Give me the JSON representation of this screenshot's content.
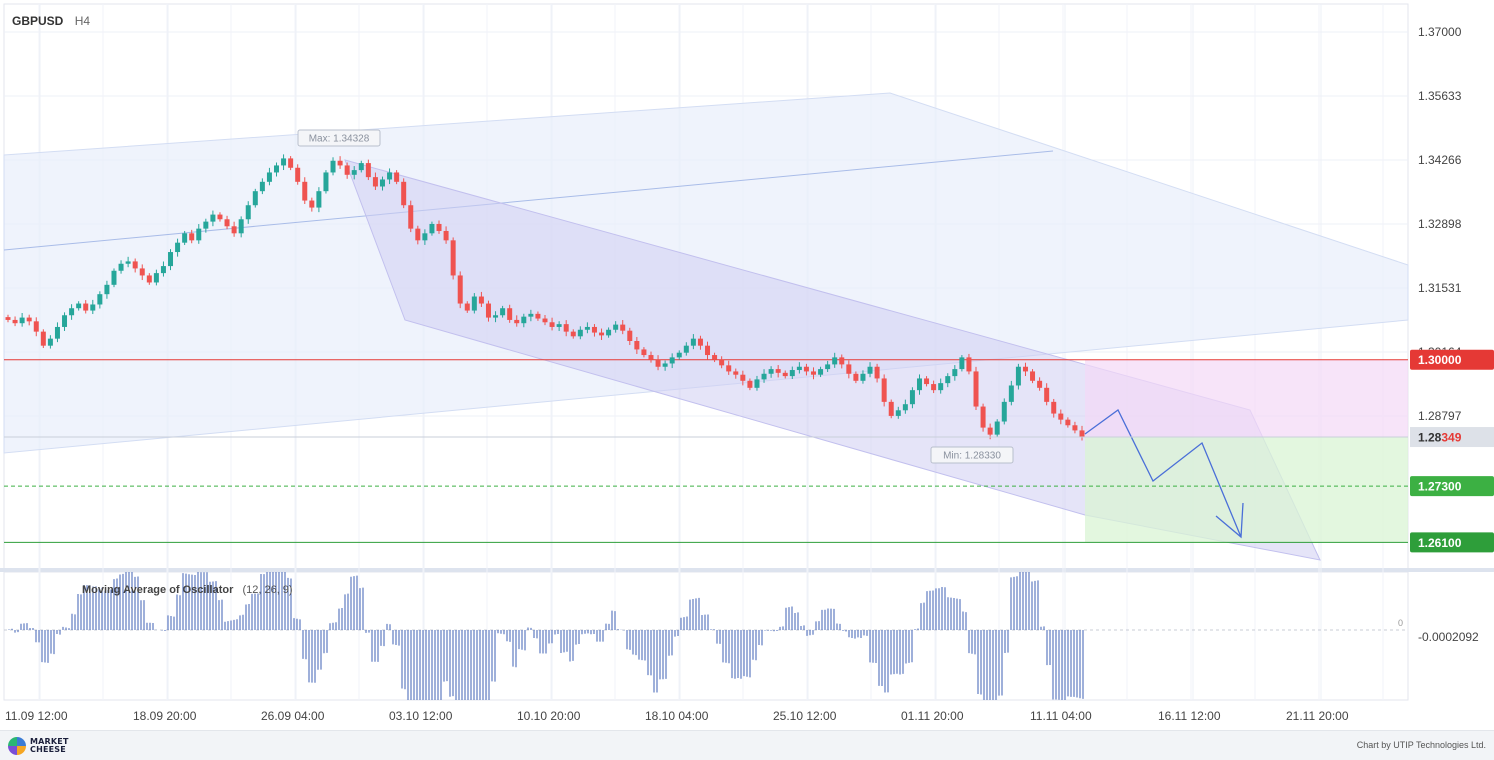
{
  "header": {
    "symbol": "GBPUSD",
    "timeframe": "H4"
  },
  "footer": {
    "brand": "MARKET\nCHEESE",
    "credit": "Chart by UTIP Technologies Ltd."
  },
  "indicator": {
    "name": "Moving Average of Oscillator",
    "params": "(12, 26, 9)",
    "zero_label": "0",
    "current_value": "-0.0002092"
  },
  "colors": {
    "bull": "#26a69a",
    "bear": "#ef5350",
    "accent": "#4a6fd8",
    "resistance": "#e53935",
    "target": "#2e9e3a",
    "target_dashed": "#3cb043"
  },
  "chart_data": {
    "type": "candlestick",
    "symbol": "GBPUSD",
    "timeframe": "H4",
    "ylim": [
      1.26,
      1.375
    ],
    "y_ticks": [
      1.37,
      1.35633,
      1.34266,
      1.32898,
      1.31531,
      1.30164,
      1.28797
    ],
    "x_ticks": [
      "11.09 12:00",
      "18.09 20:00",
      "26.09 04:00",
      "03.10 12:00",
      "10.10 20:00",
      "18.10 04:00",
      "25.10 12:00",
      "01.11 20:00",
      "11.11 04:00",
      "16.11 12:00",
      "21.11 20:00"
    ],
    "current_price": {
      "main": "1.28",
      "highlight": "349",
      "value": 1.28349
    },
    "annotations": {
      "max": "Max: 1.34328",
      "min": "Min: 1.28330"
    },
    "levels": [
      {
        "label": "1.30000",
        "value": 1.3,
        "style": "solid",
        "color": "#e53935"
      },
      {
        "label": "1.27300",
        "value": 1.273,
        "style": "dashed",
        "color": "#3cb043"
      },
      {
        "label": "1.26100",
        "value": 1.261,
        "style": "solid",
        "color": "#2e9e3a"
      }
    ],
    "series_close": [
      1.3085,
      1.3078,
      1.309,
      1.3082,
      1.306,
      1.303,
      1.3045,
      1.307,
      1.3095,
      1.311,
      1.312,
      1.3105,
      1.3118,
      1.314,
      1.316,
      1.319,
      1.3205,
      1.321,
      1.3195,
      1.318,
      1.3165,
      1.3185,
      1.32,
      1.323,
      1.325,
      1.327,
      1.3255,
      1.328,
      1.3295,
      1.331,
      1.33,
      1.3285,
      1.327,
      1.33,
      1.333,
      1.336,
      1.338,
      1.34,
      1.3415,
      1.343,
      1.341,
      1.338,
      1.334,
      1.3325,
      1.336,
      1.34,
      1.3425,
      1.3415,
      1.3395,
      1.3405,
      1.342,
      1.339,
      1.337,
      1.3385,
      1.34,
      1.338,
      1.333,
      1.328,
      1.3255,
      1.327,
      1.329,
      1.3275,
      1.3255,
      1.318,
      1.312,
      1.3105,
      1.3135,
      1.312,
      1.309,
      1.3095,
      1.311,
      1.3085,
      1.3078,
      1.3092,
      1.3098,
      1.3088,
      1.308,
      1.307,
      1.3076,
      1.306,
      1.305,
      1.3064,
      1.307,
      1.3058,
      1.3052,
      1.3064,
      1.3075,
      1.3062,
      1.304,
      1.3022,
      1.301,
      1.3,
      1.2985,
      1.2992,
      1.3005,
      1.3015,
      1.303,
      1.3045,
      1.303,
      1.301,
      1.3,
      1.2988,
      1.2975,
      1.2968,
      1.2955,
      1.294,
      1.2958,
      1.297,
      1.298,
      1.2972,
      1.2965,
      1.2978,
      1.2985,
      1.2975,
      1.2968,
      1.298,
      1.299,
      1.3005,
      1.299,
      1.297,
      1.2955,
      1.297,
      1.2985,
      1.296,
      1.291,
      1.288,
      1.2892,
      1.2905,
      1.2935,
      1.296,
      1.2948,
      1.2935,
      1.295,
      1.2965,
      1.298,
      1.3005,
      1.2975,
      1.29,
      1.2855,
      1.284,
      1.2868,
      1.291,
      1.2945,
      1.2985,
      1.2975,
      1.2955,
      1.294,
      1.291,
      1.2885,
      1.2872,
      1.286,
      1.2849,
      1.28349
    ],
    "projection": {
      "path_points": [
        [
          "11.11 04:00",
          1.28349
        ],
        [
          "12.11",
          1.288
        ],
        [
          "14.11",
          1.276
        ],
        [
          "16.11 12:00",
          1.2815
        ],
        [
          "19.11",
          1.262
        ]
      ],
      "target_zone": [
        1.261,
        1.2835
      ],
      "risk_zone": [
        1.2835,
        1.3
      ]
    },
    "channels": [
      {
        "name": "long-term ascending",
        "from": [
          "11.09 12:00",
          1.31
        ],
        "to": [
          "21.11 20:00",
          1.316
        ]
      },
      {
        "name": "descending",
        "upper": [
          [
            "03.10 12:00",
            1.3425
          ],
          [
            "18.11",
            1.288
          ]
        ],
        "lower": [
          [
            "03.10 12:00",
            1.328
          ],
          [
            "21.11 20:00",
            1.259
          ]
        ]
      }
    ],
    "oscillator": {
      "name": "Moving Average of Oscillator",
      "params": [
        12,
        26,
        9
      ],
      "zero": 0,
      "current": -0.0002092
    }
  }
}
